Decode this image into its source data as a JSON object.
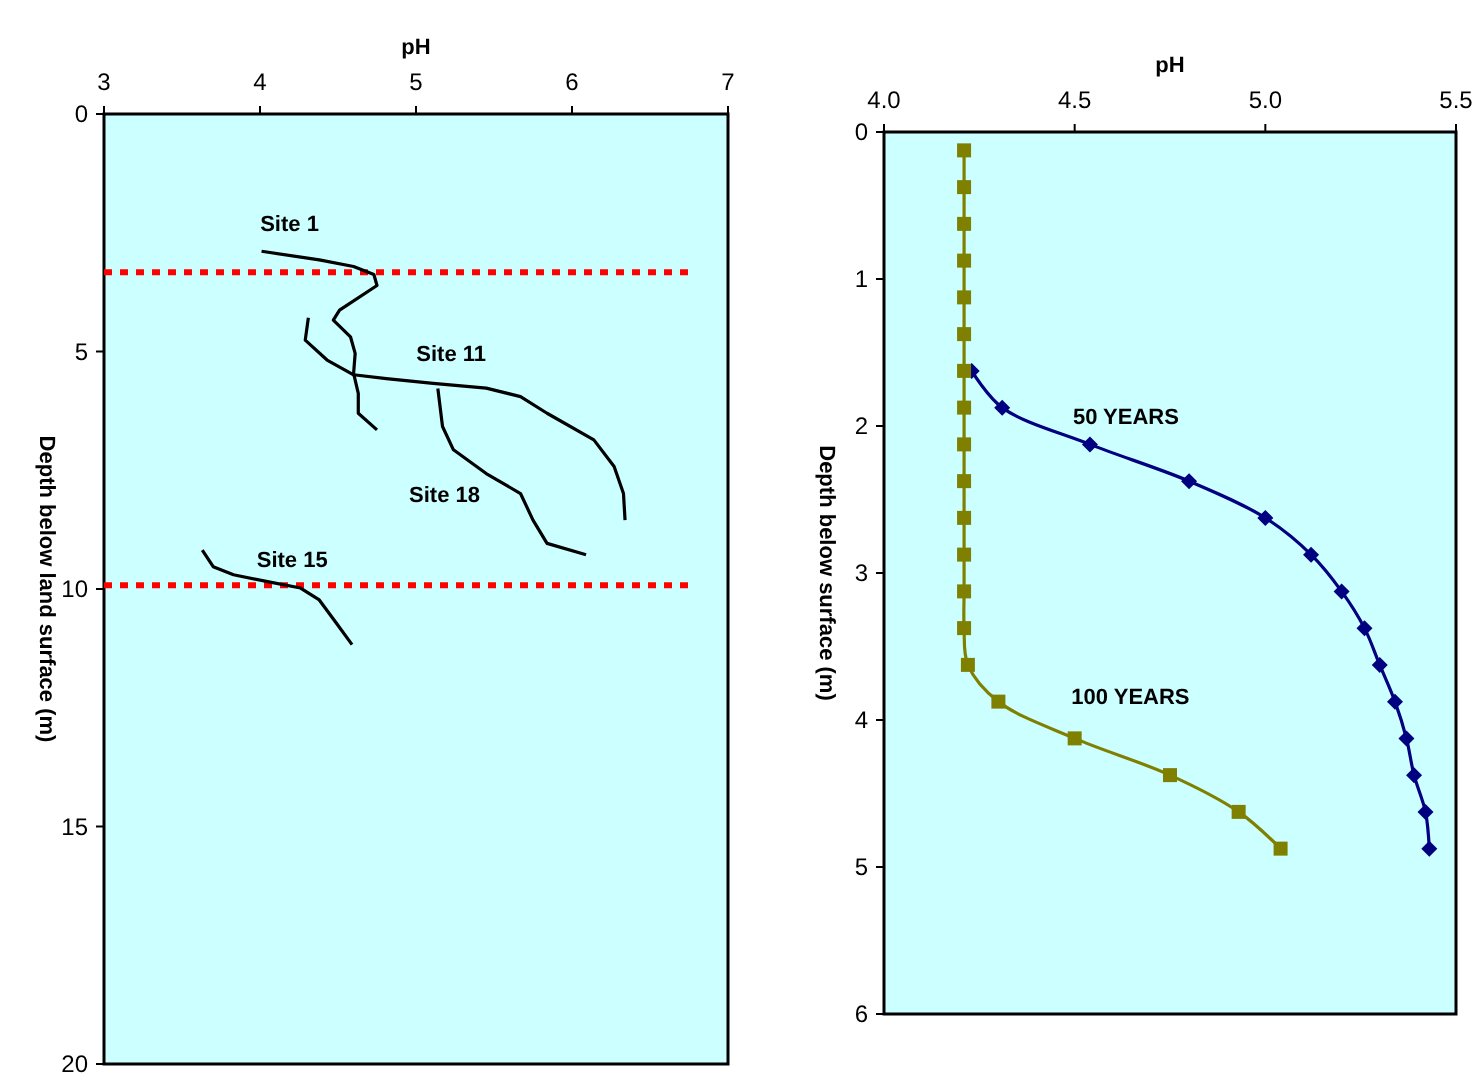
{
  "chart_data": [
    {
      "type": "line",
      "xlabel": "pH",
      "ylabel": "Depth below land surface (m)",
      "xlim": [
        3,
        7
      ],
      "xticks": [
        3,
        4,
        5,
        6,
        7
      ],
      "ylim": [
        20,
        0
      ],
      "yticks": [
        0,
        5,
        10,
        15,
        20
      ],
      "marker": "none",
      "line_style": "solid",
      "grid": false,
      "ref_lines": [
        {
          "axis": "y",
          "value": 3.33,
          "color": "#ff0000",
          "line_style": "dotted"
        },
        {
          "axis": "y",
          "value": 9.92,
          "color": "#ff0000",
          "line_style": "dotted"
        }
      ],
      "series": [
        {
          "name": "Site 1",
          "color": "#000000",
          "x": [
            4.01,
            4.38,
            4.6,
            4.73,
            4.75,
            4.51,
            4.47,
            4.58,
            4.61,
            4.6,
            4.63,
            4.63,
            4.75
          ],
          "values": [
            2.89,
            3.07,
            3.21,
            3.38,
            3.61,
            4.13,
            4.34,
            4.69,
            5.04,
            5.46,
            5.88,
            6.3,
            6.65
          ]
        },
        {
          "name": "Site 11",
          "color": "#000000",
          "x": [
            4.31,
            4.29,
            4.43,
            4.6,
            4.81,
            5.11,
            5.45,
            5.67,
            5.84,
            6.14,
            6.27,
            6.33,
            6.34
          ],
          "values": [
            4.29,
            4.76,
            5.18,
            5.49,
            5.57,
            5.67,
            5.77,
            5.95,
            6.3,
            6.86,
            7.42,
            7.99,
            8.55
          ]
        },
        {
          "name": "Site 18",
          "color": "#000000",
          "x": [
            5.14,
            5.17,
            5.24,
            5.45,
            5.67,
            5.75,
            5.84,
            6.09
          ],
          "values": [
            5.78,
            6.58,
            7.07,
            7.57,
            7.99,
            8.55,
            9.04,
            9.28
          ]
        },
        {
          "name": "Site 15",
          "color": "#000000",
          "x": [
            3.63,
            3.7,
            3.83,
            4.04,
            4.26,
            4.38,
            4.49,
            4.59
          ],
          "values": [
            9.18,
            9.53,
            9.7,
            9.84,
            9.98,
            10.23,
            10.72,
            11.17
          ]
        }
      ]
    },
    {
      "type": "line",
      "xlabel": "pH",
      "ylabel": "Depth below surface (m)",
      "xlim": [
        4,
        5.5
      ],
      "xticks": [
        {
          "value": 4,
          "label": "4.0"
        },
        {
          "value": 4.5,
          "label": "4.5"
        },
        {
          "value": 5,
          "label": "5.0"
        },
        {
          "value": 5.5,
          "label": "5.5"
        }
      ],
      "ylim": [
        6,
        0
      ],
      "yticks": [
        0,
        1,
        2,
        3,
        4,
        5,
        6
      ],
      "line_style": "solid",
      "grid": false,
      "series": [
        {
          "name": "50 YEARS",
          "color": "#000080",
          "marker": "diamond",
          "x": [
            4.23,
            4.31,
            4.54,
            4.8,
            5.0,
            5.12,
            5.2,
            5.26,
            5.3,
            5.34,
            5.37,
            5.39,
            5.42,
            5.43
          ],
          "values": [
            1.625,
            1.875,
            2.125,
            2.375,
            2.625,
            2.875,
            3.125,
            3.375,
            3.625,
            3.875,
            4.125,
            4.375,
            4.625,
            4.875
          ]
        },
        {
          "name": "100 YEARS",
          "color": "#808000",
          "marker": "square",
          "x": [
            4.21,
            4.21,
            4.21,
            4.21,
            4.21,
            4.21,
            4.21,
            4.21,
            4.21,
            4.21,
            4.21,
            4.21,
            4.21,
            4.21,
            4.22,
            4.3,
            4.5,
            4.75,
            4.93,
            5.04
          ],
          "values": [
            0.125,
            0.375,
            0.625,
            0.875,
            1.125,
            1.375,
            1.625,
            1.875,
            2.125,
            2.375,
            2.625,
            2.875,
            3.125,
            3.375,
            3.625,
            3.875,
            4.125,
            4.375,
            4.625,
            4.875
          ]
        }
      ]
    }
  ]
}
